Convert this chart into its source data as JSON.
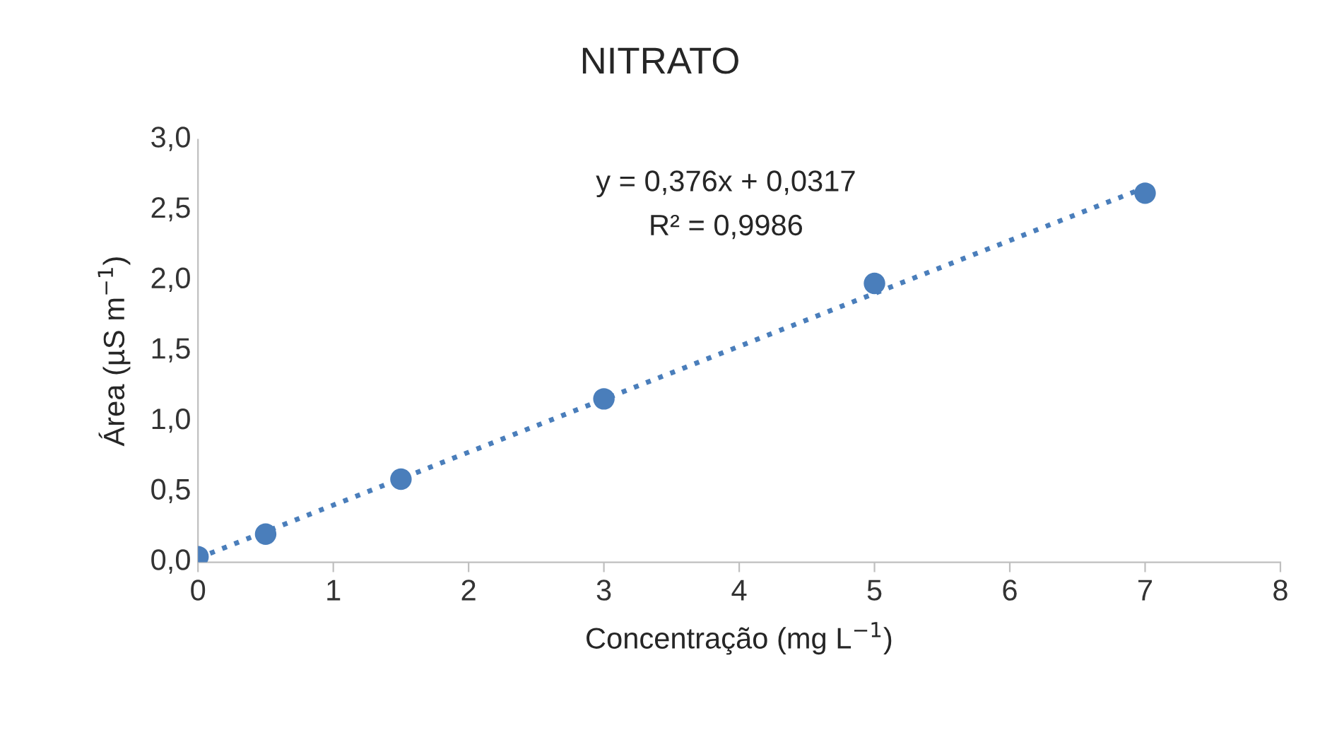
{
  "chart_data": {
    "type": "scatter",
    "title": "NITRATO",
    "xlabel": "Concentração (mg L$^{−1}$)",
    "ylabel": "Área (µS m$^{−1}$)",
    "series": [
      {
        "color": "#4a7ebb",
        "marker": "circle",
        "x": [
          0,
          0.5,
          1.5,
          3,
          5,
          7
        ],
        "values": [
          0.04,
          0.2,
          0.59,
          1.16,
          1.98,
          2.62
        ]
      },
      {
        "type": "line",
        "color": "#4a7ebb",
        "marker": "none",
        "line_style": "dotted",
        "x": [
          0,
          7
        ],
        "values": [
          0.03,
          2.66
        ]
      }
    ],
    "xlim": [
      0,
      8
    ],
    "xticks": [
      0,
      1,
      2,
      3,
      4,
      5,
      6,
      7,
      8
    ],
    "ylim": [
      0,
      3
    ],
    "yticks": [
      {
        "value": 0,
        "label": "0,0"
      },
      {
        "value": 0.5,
        "label": "0,5"
      },
      {
        "value": 1,
        "label": "1,0"
      },
      {
        "value": 1.5,
        "label": "1,5"
      },
      {
        "value": 2,
        "label": "2,0"
      },
      {
        "value": 2.5,
        "label": "2,5"
      },
      {
        "value": 3,
        "label": "3,0"
      }
    ],
    "grid": false,
    "legend": false,
    "annotations": [
      "y = 0,376x + 0,0317",
      "R² = 0,9986"
    ]
  }
}
